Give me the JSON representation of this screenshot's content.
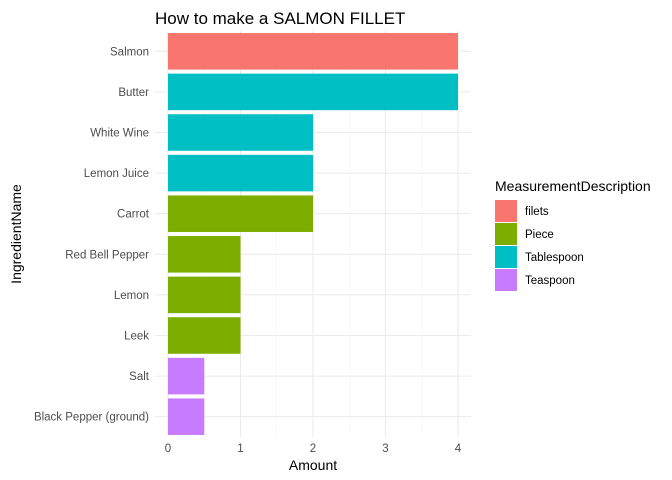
{
  "chart_data": {
    "type": "bar",
    "orientation": "horizontal",
    "title": "How to make a SALMON FILLET",
    "xlabel": "Amount",
    "ylabel": "IngredientName",
    "xlim": [
      0,
      4.2
    ],
    "x_ticks": [
      0,
      1,
      2,
      3,
      4
    ],
    "grid": true,
    "legend_position": "right",
    "legend": {
      "title": "MeasurementDescription",
      "entries": [
        {
          "name": "filets",
          "color": "#F8766D"
        },
        {
          "name": "Piece",
          "color": "#7CAE00"
        },
        {
          "name": "Tablespoon",
          "color": "#00BFC4"
        },
        {
          "name": "Teaspoon",
          "color": "#C77CFF"
        }
      ]
    },
    "categories": [
      "Salmon",
      "Butter",
      "White Wine",
      "Lemon Juice",
      "Carrot",
      "Red Bell Pepper",
      "Lemon ",
      "Leek",
      "Salt",
      "Black Pepper (ground)"
    ],
    "values": [
      4,
      4,
      2,
      2,
      2,
      1,
      1,
      1,
      0.5,
      0.5
    ],
    "groups": [
      "filets",
      "Tablespoon",
      "Tablespoon",
      "Tablespoon",
      "Piece",
      "Piece",
      "Piece",
      "Piece",
      "Teaspoon",
      "Teaspoon"
    ]
  }
}
